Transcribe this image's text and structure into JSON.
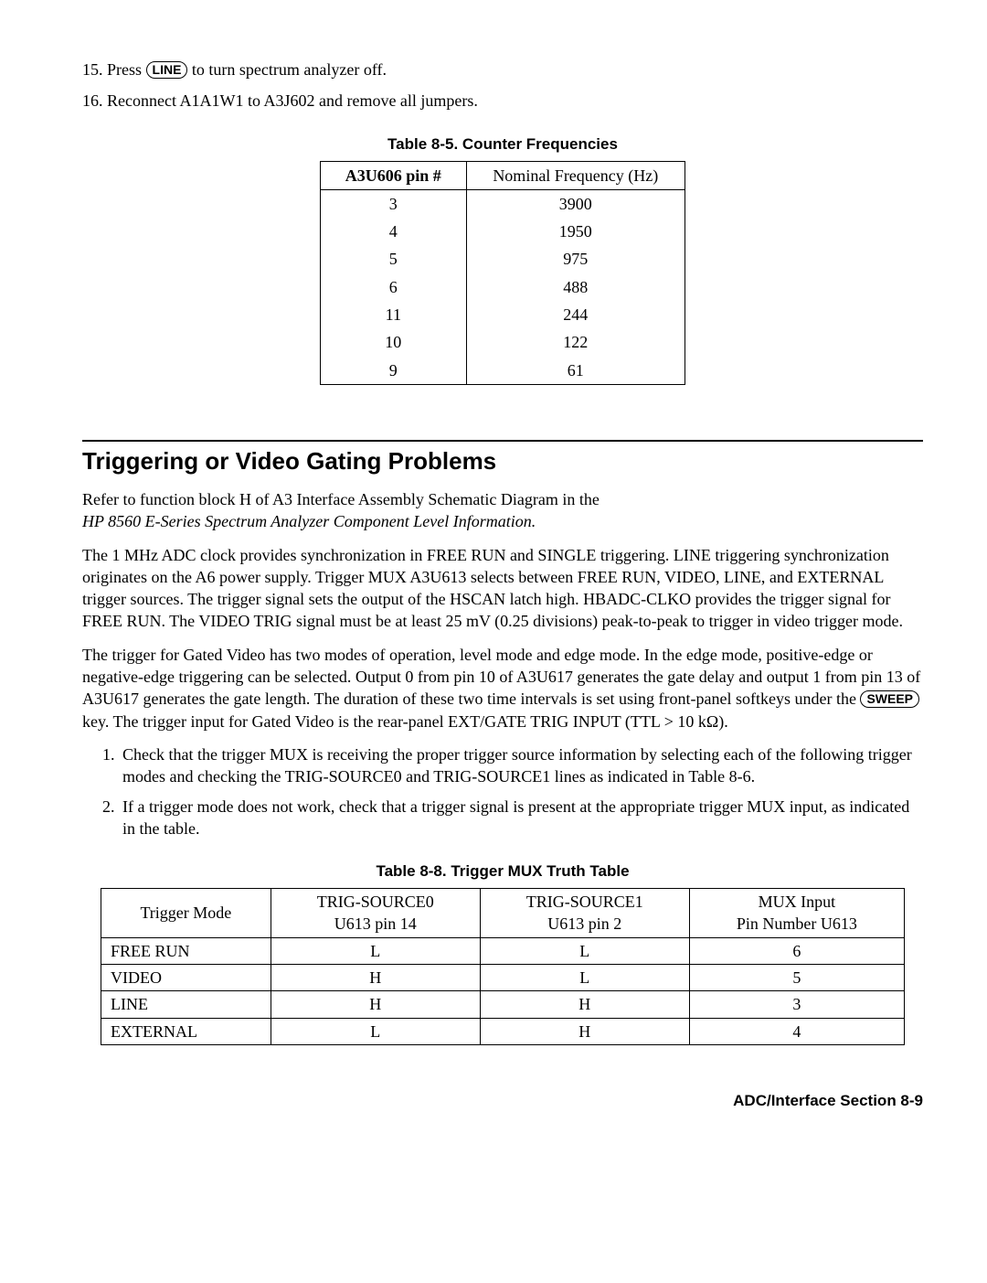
{
  "steps": {
    "s15_pre": "15. Press ",
    "s15_key": "LINE",
    "s15_post": " to turn spectrum analyzer off.",
    "s16": "16. Reconnect A1A1W1 to A3J602 and remove all jumpers."
  },
  "table85": {
    "caption": "Table 8-5. Counter Frequencies",
    "headers": [
      "A3U606 pin #",
      "Nominal Frequency (Hz)"
    ],
    "rows": [
      [
        "3",
        "3900"
      ],
      [
        "4",
        "1950"
      ],
      [
        "5",
        "975"
      ],
      [
        "6",
        "488"
      ],
      [
        "11",
        "244"
      ],
      [
        "10",
        "122"
      ],
      [
        "9",
        "61"
      ]
    ]
  },
  "section": {
    "heading": "Triggering or Video Gating Problems",
    "p1a": "Refer to function block H of A3 Interface Assembly Schematic Diagram in the",
    "p1b": "HP 8560 E-Series Spectrum Analyzer Component Level Information.",
    "p2": "The 1 MHz ADC clock provides synchronization in FREE RUN and SINGLE triggering. LINE triggering synchronization originates on the A6 power supply. Trigger MUX A3U613 selects between FREE RUN, VIDEO, LINE, and EXTERNAL trigger sources. The trigger signal sets the output of the HSCAN latch high. HBADC-CLKO provides the trigger signal for FREE RUN. The VIDEO TRIG signal must be at least 25 mV (0.25 divisions) peak-to-peak to trigger in video trigger mode.",
    "p3a": "The trigger for Gated Video has two modes of operation, level mode and edge mode. In the edge mode, positive-edge or negative-edge triggering can be selected. Output 0 from pin 10 of A3U617 generates the gate delay and output 1 from pin 13 of A3U617 generates the gate length. The duration of these two time intervals is set using front-panel softkeys under the ",
    "p3_key": "SWEEP",
    "p3b": " key. The trigger input for Gated Video is the rear-panel EXT/GATE TRIG INPUT (TTL > 10 kΩ).",
    "li1": "Check that the trigger MUX is receiving the proper trigger source information by selecting each of the following trigger modes and checking the TRIG-SOURCE0 and TRIG-SOURCE1 lines as indicated in Table 8-6.",
    "li2": "If a trigger mode does not work, check that a trigger signal is present at the appropriate trigger MUX input, as indicated in the table."
  },
  "table88": {
    "caption": "Table 8-8. Trigger MUX Truth Table",
    "headers": [
      "Trigger Mode",
      "TRIG-SOURCE0\nU613 pin 14",
      "TRIG-SOURCE1\nU613 pin 2",
      "MUX Input\nPin Number U613"
    ],
    "rows": [
      [
        "FREE RUN",
        "L",
        "L",
        "6"
      ],
      [
        "VIDEO",
        "H",
        "L",
        "5"
      ],
      [
        "LINE",
        "H",
        "H",
        "3"
      ],
      [
        "EXTERNAL",
        "L",
        "H",
        "4"
      ]
    ]
  },
  "footer": "ADC/Interface Section 8-9"
}
